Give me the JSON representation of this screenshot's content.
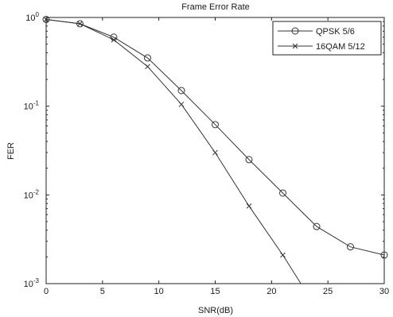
{
  "chart_data": {
    "type": "line",
    "title": "Frame Error Rate",
    "xlabel": "SNR(dB)",
    "ylabel": "FER",
    "xlim": [
      0,
      30
    ],
    "ylim": [
      0.001,
      1
    ],
    "yscale": "log",
    "grid": false,
    "legend_position": "top-right",
    "x_ticks": [
      0,
      5,
      10,
      15,
      20,
      25,
      30
    ],
    "x_tick_labels": [
      "0",
      "5",
      "10",
      "15",
      "20",
      "25",
      "30"
    ],
    "y_ticks": [
      1,
      0.1,
      0.01,
      0.001
    ],
    "y_tick_labels": [
      {
        "base": "10",
        "exp": "0"
      },
      {
        "base": "10",
        "exp": "-1"
      },
      {
        "base": "10",
        "exp": "-2"
      },
      {
        "base": "10",
        "exp": "-3"
      }
    ],
    "series": [
      {
        "name": "QPSK 5/6",
        "marker": "circle",
        "color": "#333333",
        "x": [
          0,
          3,
          6,
          9,
          12,
          15,
          18,
          21,
          24,
          27,
          30
        ],
        "y": [
          0.95,
          0.85,
          0.6,
          0.35,
          0.15,
          0.062,
          0.025,
          0.0105,
          0.0044,
          0.0026,
          0.0021
        ]
      },
      {
        "name": "16QAM 5/12",
        "marker": "x",
        "color": "#333333",
        "x": [
          0,
          3,
          6,
          9,
          12,
          15,
          18,
          21,
          22.6
        ],
        "y": [
          0.95,
          0.85,
          0.56,
          0.28,
          0.105,
          0.03,
          0.0075,
          0.0021,
          0.001
        ]
      }
    ]
  }
}
